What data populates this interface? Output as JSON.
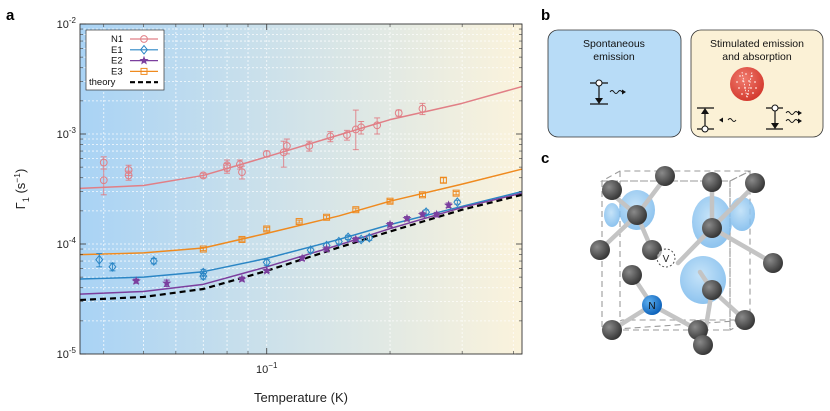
{
  "figure": {
    "panel_labels": {
      "a": "a",
      "b": "b",
      "c": "c"
    },
    "panel_b": {
      "spontaneous_line1": "Spontaneous",
      "spontaneous_line2": "emission",
      "stimulated_line1": "Stimulated emission",
      "stimulated_line2": "and absorption"
    },
    "panel_c": {
      "vacancy_label": "V",
      "nitrogen_label": "N"
    }
  },
  "chart_data": {
    "type": "scatter",
    "xscale": "log",
    "yscale": "log",
    "xlim": [
      0.035,
      0.42
    ],
    "ylim": [
      1e-05,
      0.01
    ],
    "xlabel": "Temperature (K)",
    "ylabel_base": "Γ",
    "ylabel_sub": "1",
    "ylabel_unit_open": " (s",
    "ylabel_unit_sup": "−1",
    "ylabel_unit_close": ")",
    "xtick_label": {
      "base": "10",
      "exp": "−1"
    },
    "ytick_labels": [
      {
        "value": 1e-05,
        "base": "10",
        "exp": "-5"
      },
      {
        "value": 0.0001,
        "base": "10",
        "exp": "-4"
      },
      {
        "value": 0.001,
        "base": "10",
        "exp": "-3"
      },
      {
        "value": 0.01,
        "base": "10",
        "exp": "-2"
      }
    ],
    "grid": true,
    "background": {
      "left_color": "#a9d3f5",
      "right_color": "#fbf3dc"
    },
    "legend_position": "top-left",
    "series": [
      {
        "name": "N1",
        "color": "#e17f86",
        "marker": "circle",
        "points": [
          {
            "x": 0.04,
            "y": 0.00055,
            "lo": 0.00048,
            "hi": 0.00062
          },
          {
            "x": 0.04,
            "y": 0.00038,
            "lo": 0.00028,
            "hi": 0.00048
          },
          {
            "x": 0.046,
            "y": 0.00047,
            "lo": 0.00042,
            "hi": 0.00052
          },
          {
            "x": 0.046,
            "y": 0.00042,
            "lo": 0.00038,
            "hi": 0.00046
          },
          {
            "x": 0.07,
            "y": 0.00042,
            "lo": 0.0004,
            "hi": 0.00044
          },
          {
            "x": 0.08,
            "y": 0.00052,
            "lo": 0.00046,
            "hi": 0.00058
          },
          {
            "x": 0.08,
            "y": 0.00049,
            "lo": 0.00044,
            "hi": 0.00054
          },
          {
            "x": 0.086,
            "y": 0.00053,
            "lo": 0.00048,
            "hi": 0.00058
          },
          {
            "x": 0.087,
            "y": 0.00045,
            "lo": 0.00039,
            "hi": 0.00051
          },
          {
            "x": 0.1,
            "y": 0.00066,
            "lo": 0.00062,
            "hi": 0.0007
          },
          {
            "x": 0.11,
            "y": 0.00068,
            "lo": 0.0005,
            "hi": 0.00086
          },
          {
            "x": 0.112,
            "y": 0.00078,
            "lo": 0.00066,
            "hi": 0.0009
          },
          {
            "x": 0.127,
            "y": 0.00078,
            "lo": 0.0007,
            "hi": 0.00086
          },
          {
            "x": 0.143,
            "y": 0.00095,
            "lo": 0.00085,
            "hi": 0.00105
          },
          {
            "x": 0.157,
            "y": 0.00098,
            "lo": 0.00088,
            "hi": 0.00108
          },
          {
            "x": 0.165,
            "y": 0.0011,
            "lo": 0.00072,
            "hi": 0.00165
          },
          {
            "x": 0.17,
            "y": 0.00115,
            "lo": 0.001,
            "hi": 0.0013
          },
          {
            "x": 0.186,
            "y": 0.0012,
            "lo": 0.001,
            "hi": 0.0014
          },
          {
            "x": 0.21,
            "y": 0.00155,
            "lo": 0.00145,
            "hi": 0.00165
          },
          {
            "x": 0.24,
            "y": 0.0017,
            "lo": 0.0015,
            "hi": 0.0019
          }
        ],
        "fit": [
          [
            0.035,
            0.00032
          ],
          [
            0.05,
            0.00034
          ],
          [
            0.07,
            0.00042
          ],
          [
            0.1,
            0.00062
          ],
          [
            0.15,
            0.00098
          ],
          [
            0.2,
            0.00135
          ],
          [
            0.3,
            0.0019
          ],
          [
            0.42,
            0.0027
          ]
        ]
      },
      {
        "name": "E1",
        "color": "#2b86c5",
        "marker": "diamond",
        "points": [
          {
            "x": 0.039,
            "y": 7.2e-05,
            "lo": 6.2e-05,
            "hi": 8.2e-05
          },
          {
            "x": 0.042,
            "y": 6.2e-05,
            "lo": 5.7e-05,
            "hi": 6.7e-05
          },
          {
            "x": 0.053,
            "y": 7e-05,
            "lo": 6.6e-05,
            "hi": 7.4e-05
          },
          {
            "x": 0.07,
            "y": 5.5e-05,
            "lo": 5.1e-05,
            "hi": 5.9e-05
          },
          {
            "x": 0.07,
            "y": 5.1e-05,
            "lo": 4.8e-05,
            "hi": 5.4e-05
          },
          {
            "x": 0.1,
            "y": 6.8e-05,
            "lo": 6.4e-05,
            "hi": 7.2e-05
          },
          {
            "x": 0.128,
            "y": 8.8e-05,
            "lo": 8.4e-05,
            "hi": 9.2e-05
          },
          {
            "x": 0.14,
            "y": 9.7e-05,
            "lo": 9.2e-05,
            "hi": 0.000102
          },
          {
            "x": 0.15,
            "y": 0.000105,
            "lo": 0.0001,
            "hi": 0.00011
          },
          {
            "x": 0.158,
            "y": 0.000115,
            "lo": 0.00011,
            "hi": 0.00012
          },
          {
            "x": 0.17,
            "y": 0.00011,
            "lo": 0.000105,
            "hi": 0.000115
          },
          {
            "x": 0.178,
            "y": 0.000114,
            "lo": 0.000108,
            "hi": 0.00012
          },
          {
            "x": 0.245,
            "y": 0.000195,
            "lo": 0.000186,
            "hi": 0.000204
          },
          {
            "x": 0.292,
            "y": 0.00024,
            "lo": 0.00023,
            "hi": 0.00025
          }
        ],
        "fit": [
          [
            0.035,
            4.8e-05
          ],
          [
            0.05,
            5e-05
          ],
          [
            0.07,
            5.6e-05
          ],
          [
            0.1,
            7.4e-05
          ],
          [
            0.15,
            0.00011
          ],
          [
            0.2,
            0.00015
          ],
          [
            0.3,
            0.00022
          ],
          [
            0.42,
            0.0003
          ]
        ]
      },
      {
        "name": "E2",
        "color": "#7b3f9e",
        "marker": "star",
        "points": [
          {
            "x": 0.048,
            "y": 4.6e-05,
            "lo": 4.4e-05,
            "hi": 4.8e-05
          },
          {
            "x": 0.057,
            "y": 4.4e-05,
            "lo": 4.1e-05,
            "hi": 4.7e-05
          },
          {
            "x": 0.087,
            "y": 4.8e-05,
            "lo": 4.6e-05,
            "hi": 5e-05
          },
          {
            "x": 0.1,
            "y": 5.7e-05,
            "lo": 5.5e-05,
            "hi": 5.9e-05
          },
          {
            "x": 0.122,
            "y": 7.4e-05,
            "lo": 7.1e-05,
            "hi": 7.7e-05
          },
          {
            "x": 0.14,
            "y": 9e-05,
            "lo": 8.6e-05,
            "hi": 9.4e-05
          },
          {
            "x": 0.165,
            "y": 0.00011,
            "lo": 0.000105,
            "hi": 0.000115
          },
          {
            "x": 0.2,
            "y": 0.00015,
            "lo": 0.000143,
            "hi": 0.000157
          },
          {
            "x": 0.22,
            "y": 0.00017,
            "lo": 0.000162,
            "hi": 0.000178
          },
          {
            "x": 0.24,
            "y": 0.000185,
            "lo": 0.000176,
            "hi": 0.000194
          },
          {
            "x": 0.26,
            "y": 0.000185,
            "lo": 0.000176,
            "hi": 0.000194
          },
          {
            "x": 0.278,
            "y": 0.000225,
            "lo": 0.000214,
            "hi": 0.000236
          }
        ],
        "fit": [
          [
            0.035,
            3.5e-05
          ],
          [
            0.05,
            3.7e-05
          ],
          [
            0.07,
            4.3e-05
          ],
          [
            0.1,
            6.2e-05
          ],
          [
            0.15,
            9.8e-05
          ],
          [
            0.2,
            0.000138
          ],
          [
            0.3,
            0.000215
          ],
          [
            0.42,
            0.00029
          ]
        ]
      },
      {
        "name": "E3",
        "color": "#ef8a1f",
        "marker": "square",
        "points": [
          {
            "x": 0.07,
            "y": 9e-05,
            "lo": 8.7e-05,
            "hi": 9.3e-05
          },
          {
            "x": 0.087,
            "y": 0.00011,
            "lo": 0.000106,
            "hi": 0.000114
          },
          {
            "x": 0.1,
            "y": 0.000137,
            "lo": 0.000132,
            "hi": 0.000142
          },
          {
            "x": 0.12,
            "y": 0.00016,
            "lo": 0.000155,
            "hi": 0.000165
          },
          {
            "x": 0.14,
            "y": 0.000175,
            "lo": 0.000169,
            "hi": 0.000181
          },
          {
            "x": 0.165,
            "y": 0.000205,
            "lo": 0.000198,
            "hi": 0.000212
          },
          {
            "x": 0.2,
            "y": 0.000245,
            "lo": 0.000236,
            "hi": 0.000254
          },
          {
            "x": 0.24,
            "y": 0.00028,
            "lo": 0.00027,
            "hi": 0.00029
          },
          {
            "x": 0.27,
            "y": 0.00038,
            "lo": 0.00036,
            "hi": 0.0004
          },
          {
            "x": 0.29,
            "y": 0.00029,
            "lo": 0.00028,
            "hi": 0.0003
          }
        ],
        "fit": [
          [
            0.035,
            8e-05
          ],
          [
            0.05,
            8.3e-05
          ],
          [
            0.07,
            9.2e-05
          ],
          [
            0.1,
            0.000125
          ],
          [
            0.15,
            0.00018
          ],
          [
            0.2,
            0.000245
          ],
          [
            0.3,
            0.00035
          ],
          [
            0.42,
            0.00048
          ]
        ]
      },
      {
        "name": "theory",
        "color": "#000000",
        "marker": "none",
        "dashed": true,
        "points": [],
        "fit": [
          [
            0.035,
            3.1e-05
          ],
          [
            0.05,
            3.3e-05
          ],
          [
            0.07,
            3.9e-05
          ],
          [
            0.1,
            5.7e-05
          ],
          [
            0.15,
            9.3e-05
          ],
          [
            0.2,
            0.00013
          ],
          [
            0.3,
            0.000205
          ],
          [
            0.42,
            0.00028
          ]
        ]
      }
    ]
  }
}
